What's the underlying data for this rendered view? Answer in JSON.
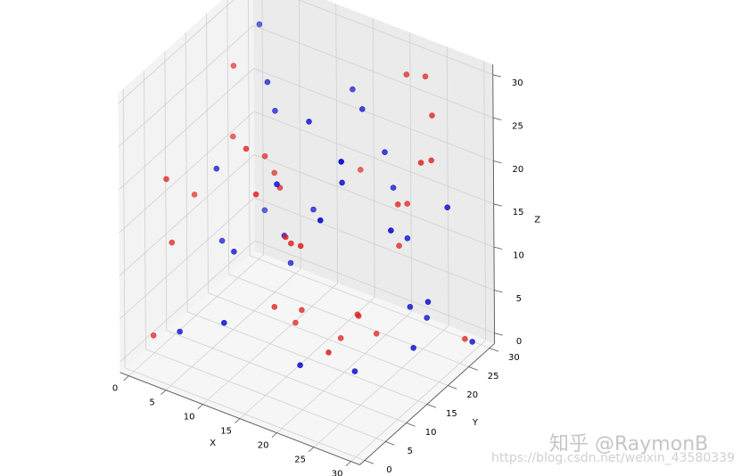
{
  "chart_data": {
    "type": "scatter",
    "title": "",
    "xlabel": "X",
    "ylabel": "Y",
    "zlabel": "Z",
    "xlim": [
      0,
      30
    ],
    "ylim": [
      0,
      30
    ],
    "zlim": [
      0,
      30
    ],
    "xticks": [
      "0",
      "5",
      "10",
      "15",
      "20",
      "25",
      "30"
    ],
    "yticks": [
      "0",
      "5",
      "10",
      "15",
      "20",
      "25",
      "30"
    ],
    "zticks": [
      "0",
      "5",
      "10",
      "15",
      "20",
      "25",
      "30"
    ],
    "grid": true,
    "series": [
      {
        "color": "#0000cc",
        "points": [
          [
            2,
            27,
            28
          ],
          [
            14,
            28,
            24
          ],
          [
            16,
            14,
            27
          ],
          [
            7,
            20,
            26
          ],
          [
            26,
            4,
            30
          ],
          [
            4,
            13,
            18
          ],
          [
            15,
            8,
            22
          ],
          [
            20,
            27,
            15
          ],
          [
            21,
            13,
            22
          ],
          [
            12,
            15,
            12
          ],
          [
            2,
            28,
            6
          ],
          [
            3,
            16,
            8
          ],
          [
            18,
            8,
            2
          ],
          [
            27,
            14,
            18
          ],
          [
            25,
            22,
            5
          ],
          [
            4,
            4,
            3
          ],
          [
            10,
            20,
            6
          ],
          [
            29,
            24,
            17
          ],
          [
            28,
            21,
            7
          ],
          [
            30,
            28,
            0
          ],
          [
            23,
            25,
            11
          ],
          [
            12,
            22,
            12
          ],
          [
            8,
            10,
            11
          ],
          [
            17,
            25,
            24
          ],
          [
            22,
            6,
            21
          ],
          [
            25,
            26,
            2
          ],
          [
            20,
            25,
            20
          ],
          [
            10,
            4,
            6
          ],
          [
            8,
            20,
            23
          ],
          [
            22,
            14,
            0
          ],
          [
            26,
            21,
            1
          ]
        ]
      },
      {
        "color": "#dd2222",
        "points": [
          [
            23,
            25,
            30
          ],
          [
            25,
            26,
            30
          ],
          [
            27,
            24,
            27
          ],
          [
            9,
            18,
            17
          ],
          [
            21,
            3,
            19
          ],
          [
            3,
            19,
            27
          ],
          [
            15,
            28,
            15
          ],
          [
            28,
            22,
            23
          ],
          [
            12,
            6,
            26
          ],
          [
            10,
            14,
            21
          ],
          [
            12,
            14,
            18
          ],
          [
            4,
            17,
            20
          ],
          [
            1,
            13,
            14
          ],
          [
            1,
            3,
            2
          ],
          [
            4,
            1,
            22
          ],
          [
            22,
            15,
            6
          ],
          [
            24,
            21,
            17
          ],
          [
            23,
            23,
            11
          ],
          [
            23,
            25,
            15
          ],
          [
            30,
            16,
            26
          ],
          [
            15,
            10,
            15
          ],
          [
            19,
            16,
            2
          ],
          [
            3,
            4,
            13
          ],
          [
            16,
            12,
            6
          ],
          [
            14,
            14,
            3
          ],
          [
            21,
            21,
            1
          ],
          [
            19,
            20,
            3
          ],
          [
            15,
            3,
            23
          ],
          [
            29,
            28,
            0
          ],
          [
            18,
            6,
            17
          ],
          [
            14,
            9,
            7
          ],
          [
            23,
            6,
            6
          ]
        ]
      }
    ]
  },
  "watermark": {
    "text": "知乎 @RaymonB",
    "url": "https://blog.csdn.net/weixin_43580339"
  }
}
